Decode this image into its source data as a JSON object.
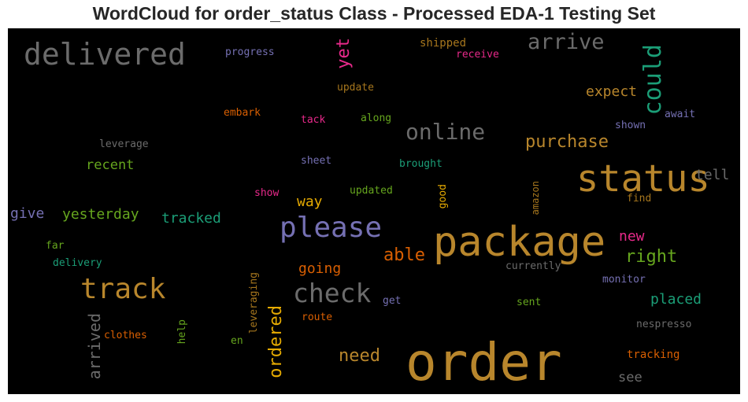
{
  "chart_data": {
    "type": "wordcloud",
    "title": "WordCloud for order_status Class - Processed EDA-1 Testing Set",
    "background": "#000000",
    "colors": {
      "gold": "#b8862c",
      "gray": "#6b6b6b",
      "purple": "#7570b3",
      "green": "#1b9e77",
      "orange": "#d95f02",
      "magenta": "#e7298a",
      "lime": "#66a61e",
      "mustard": "#e6ab02",
      "brown": "#a6761d"
    },
    "words": [
      {
        "text": "order",
        "color": "#b8862c"
      },
      {
        "text": "package",
        "color": "#b8862c"
      },
      {
        "text": "status",
        "color": "#b8862c"
      },
      {
        "text": "delivered",
        "color": "#6b6b6b"
      },
      {
        "text": "track",
        "color": "#b8862c"
      },
      {
        "text": "please",
        "color": "#7570b3"
      },
      {
        "text": "check",
        "color": "#6b6b6b"
      },
      {
        "text": "online",
        "color": "#6b6b6b"
      },
      {
        "text": "arrive",
        "color": "#6b6b6b"
      },
      {
        "text": "could",
        "color": "#1b9e77"
      },
      {
        "text": "purchase",
        "color": "#b8862c"
      },
      {
        "text": "yet",
        "color": "#e7298a"
      },
      {
        "text": "expect",
        "color": "#b8862c"
      },
      {
        "text": "right",
        "color": "#66a61e"
      },
      {
        "text": "able",
        "color": "#d95f02"
      },
      {
        "text": "ordered",
        "color": "#e6ab02"
      },
      {
        "text": "need",
        "color": "#b8862c"
      },
      {
        "text": "arrived",
        "color": "#6b6b6b"
      },
      {
        "text": "placed",
        "color": "#1b9e77"
      },
      {
        "text": "yesterday",
        "color": "#66a61e"
      },
      {
        "text": "tracked",
        "color": "#1b9e77"
      },
      {
        "text": "recent",
        "color": "#66a61e"
      },
      {
        "text": "give",
        "color": "#7570b3"
      },
      {
        "text": "going",
        "color": "#d95f02"
      },
      {
        "text": "way",
        "color": "#e6ab02"
      },
      {
        "text": "tell",
        "color": "#6b6b6b"
      },
      {
        "text": "new",
        "color": "#e7298a"
      },
      {
        "text": "see",
        "color": "#6b6b6b"
      },
      {
        "text": "tracking",
        "color": "#d95f02"
      },
      {
        "text": "shipped",
        "color": "#a6761d"
      },
      {
        "text": "progress",
        "color": "#7570b3"
      },
      {
        "text": "receive",
        "color": "#e7298a"
      },
      {
        "text": "update",
        "color": "#a6761d"
      },
      {
        "text": "embark",
        "color": "#d95f02"
      },
      {
        "text": "tack",
        "color": "#e7298a"
      },
      {
        "text": "along",
        "color": "#66a61e"
      },
      {
        "text": "shown",
        "color": "#7570b3"
      },
      {
        "text": "await",
        "color": "#7570b3"
      },
      {
        "text": "leverage",
        "color": "#6b6b6b"
      },
      {
        "text": "sheet",
        "color": "#7570b3"
      },
      {
        "text": "brought",
        "color": "#1b9e77"
      },
      {
        "text": "show",
        "color": "#e7298a"
      },
      {
        "text": "updated",
        "color": "#66a61e"
      },
      {
        "text": "good",
        "color": "#e6ab02"
      },
      {
        "text": "amazon",
        "color": "#a6761d"
      },
      {
        "text": "find",
        "color": "#a6761d"
      },
      {
        "text": "far",
        "color": "#66a61e"
      },
      {
        "text": "delivery",
        "color": "#1b9e77"
      },
      {
        "text": "currently",
        "color": "#6b6b6b"
      },
      {
        "text": "monitor",
        "color": "#7570b3"
      },
      {
        "text": "leveraging",
        "color": "#a6761d"
      },
      {
        "text": "get",
        "color": "#7570b3"
      },
      {
        "text": "sent",
        "color": "#66a61e"
      },
      {
        "text": "route",
        "color": "#d95f02"
      },
      {
        "text": "nespresso",
        "color": "#6b6b6b"
      },
      {
        "text": "clothes",
        "color": "#d95f02"
      },
      {
        "text": "help",
        "color": "#66a61e"
      },
      {
        "text": "en",
        "color": "#66a61e"
      }
    ]
  }
}
